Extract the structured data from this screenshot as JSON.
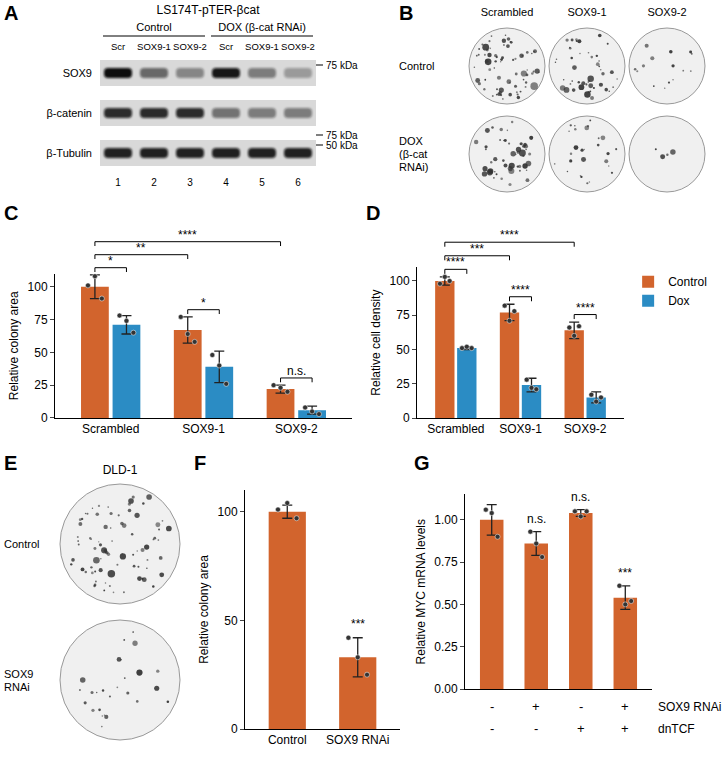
{
  "blot": {
    "label": "A",
    "cell_line": "LS174T-pTER-βcat",
    "groups": [
      {
        "name": "Control",
        "lanes": [
          "Scr",
          "SOX9-1",
          "SOX9-2"
        ]
      },
      {
        "name": "DOX (β-cat RNAi)",
        "lanes": [
          "Scr",
          "SOX9-1",
          "SOX9-2"
        ]
      }
    ],
    "lane_numbers": [
      1,
      2,
      3,
      4,
      5,
      6
    ],
    "rows": [
      {
        "name": "SOX9",
        "intensity": [
          1.0,
          0.55,
          0.4,
          0.95,
          0.45,
          0.3
        ],
        "marker": "75 kDa"
      },
      {
        "name": "β-catenin",
        "intensity": [
          0.85,
          0.85,
          0.85,
          0.5,
          0.45,
          0.45
        ],
        "marker": "75 kDa"
      },
      {
        "name": "β-Tubulin",
        "intensity": [
          0.9,
          0.9,
          0.9,
          0.9,
          0.9,
          0.9
        ],
        "marker": "50 kDa"
      }
    ]
  },
  "colony_images": [
    {
      "label": "B",
      "columns": [
        "Scrambled",
        "SOX9-1",
        "SOX9-2"
      ],
      "rows": [
        "Control",
        "DOX (β-cat RNAi)"
      ]
    },
    {
      "label": "E",
      "title": "DLD-1",
      "rows": [
        "Control",
        "SOX9 RNAi"
      ]
    }
  ],
  "chart_data": [
    {
      "label": "C",
      "type": "bar",
      "y_label": "Relative colony area",
      "categories": [
        "Scrambled",
        "SOX9-1",
        "SOX9-2"
      ],
      "series": [
        {
          "name": "Control",
          "color": "#d2642d",
          "values": [
            100,
            67,
            22
          ],
          "errors": [
            9,
            10,
            3
          ],
          "points": [
            [
              101,
              108,
              91
            ],
            [
              77,
              64,
              58
            ],
            [
              25,
              23,
              20
            ]
          ]
        },
        {
          "name": "Dox",
          "color": "#2b8cc4",
          "values": [
            71,
            39,
            6
          ],
          "errors": [
            7,
            12,
            3
          ],
          "points": [
            [
              78,
              74,
              65
            ],
            [
              48,
              40,
              26
            ],
            [
              8,
              5,
              3
            ]
          ]
        }
      ],
      "ylim": [
        0,
        110
      ],
      "yticks": [
        0,
        25,
        50,
        75,
        100
      ],
      "significance": [
        {
          "from": [
            "Scrambled",
            "Control"
          ],
          "to": [
            "Scrambled",
            "Dox"
          ],
          "label": "*"
        },
        {
          "from": [
            "SOX9-1",
            "Control"
          ],
          "to": [
            "SOX9-1",
            "Dox"
          ],
          "label": "*"
        },
        {
          "from": [
            "SOX9-2",
            "Control"
          ],
          "to": [
            "SOX9-2",
            "Dox"
          ],
          "label": "n.s."
        },
        {
          "from": [
            "Scrambled",
            "Control"
          ],
          "to": [
            "SOX9-1",
            "Control"
          ],
          "label": "**"
        },
        {
          "from": [
            "Scrambled",
            "Control"
          ],
          "to": [
            "SOX9-2",
            "Control"
          ],
          "label": "****"
        }
      ]
    },
    {
      "label": "D",
      "type": "bar",
      "y_label": "Relative cell density",
      "categories": [
        "Scrambled",
        "SOX9-1",
        "SOX9-2"
      ],
      "series": [
        {
          "name": "Control",
          "color": "#d2642d",
          "values": [
            100,
            77,
            64
          ],
          "errors": [
            3,
            6,
            6
          ],
          "points": [
            [
              98,
              103,
              100
            ],
            [
              82,
              71,
              78
            ],
            [
              66,
              60,
              67
            ]
          ]
        },
        {
          "name": "Dox",
          "color": "#2b8cc4",
          "values": [
            51,
            24,
            15
          ],
          "errors": [
            1,
            5,
            4
          ],
          "points": [
            [
              51,
              52,
              51
            ],
            [
              28,
              22,
              21
            ],
            [
              17,
              12,
              15
            ]
          ]
        }
      ],
      "ylim": [
        0,
        110
      ],
      "yticks": [
        0,
        25,
        50,
        75,
        100
      ],
      "legend": "top right",
      "significance": [
        {
          "from": [
            "Scrambled",
            "Control"
          ],
          "to": [
            "Scrambled",
            "Dox"
          ],
          "label": "****"
        },
        {
          "from": [
            "SOX9-1",
            "Control"
          ],
          "to": [
            "SOX9-1",
            "Dox"
          ],
          "label": "****"
        },
        {
          "from": [
            "SOX9-2",
            "Control"
          ],
          "to": [
            "SOX9-2",
            "Dox"
          ],
          "label": "****"
        },
        {
          "from": [
            "Scrambled",
            "Control"
          ],
          "to": [
            "SOX9-1",
            "Control"
          ],
          "label": "***"
        },
        {
          "from": [
            "Scrambled",
            "Control"
          ],
          "to": [
            "SOX9-2",
            "Control"
          ],
          "label": "****"
        }
      ]
    },
    {
      "label": "F",
      "type": "bar",
      "y_label": "Relative colony area",
      "categories": [
        "Control",
        "SOX9 RNAi"
      ],
      "series": [
        {
          "name": "Control",
          "color": "#d2642d",
          "values": [
            100,
            33
          ],
          "errors": [
            3,
            9
          ],
          "points": [
            [
              101,
              104,
              97
            ],
            [
              42,
              33,
              25
            ]
          ]
        }
      ],
      "ylim": [
        0,
        110
      ],
      "yticks": [
        0,
        50,
        100
      ],
      "bar_labels": [
        null,
        "***"
      ]
    },
    {
      "label": "G",
      "type": "bar",
      "y_label": "Relative MYC mRNA levels",
      "categories": [
        null,
        null,
        null,
        null
      ],
      "tick_labels": "y",
      "series": [
        {
          "name": "Control",
          "color": "#d2642d",
          "values": [
            1.0,
            0.86,
            1.04,
            0.54
          ],
          "errors": [
            0.09,
            0.07,
            0.02,
            0.07
          ],
          "points": [
            [
              1.06,
              1.04,
              0.9
            ],
            [
              0.93,
              0.86,
              0.78
            ],
            [
              1.05,
              1.02,
              1.05
            ],
            [
              0.61,
              0.5,
              0.52
            ]
          ]
        }
      ],
      "ylim": [
        0,
        1.15
      ],
      "yticks": [
        {
          "value": 0,
          "label": "0.00"
        },
        {
          "value": 0.25,
          "label": "0.25"
        },
        {
          "value": 0.5,
          "label": "0.50"
        },
        {
          "value": 0.75,
          "label": "0.75"
        },
        {
          "value": 1.0,
          "label": "1.00"
        }
      ],
      "bar_labels": [
        null,
        "n.s.",
        "n.s.",
        "***"
      ],
      "conditions": [
        {
          "label": "SOX9 RNAi",
          "values": [
            "-",
            "+",
            "-",
            "+"
          ]
        },
        {
          "label": "dnTCF",
          "values": [
            "-",
            "-",
            "+",
            "+"
          ]
        }
      ]
    }
  ]
}
